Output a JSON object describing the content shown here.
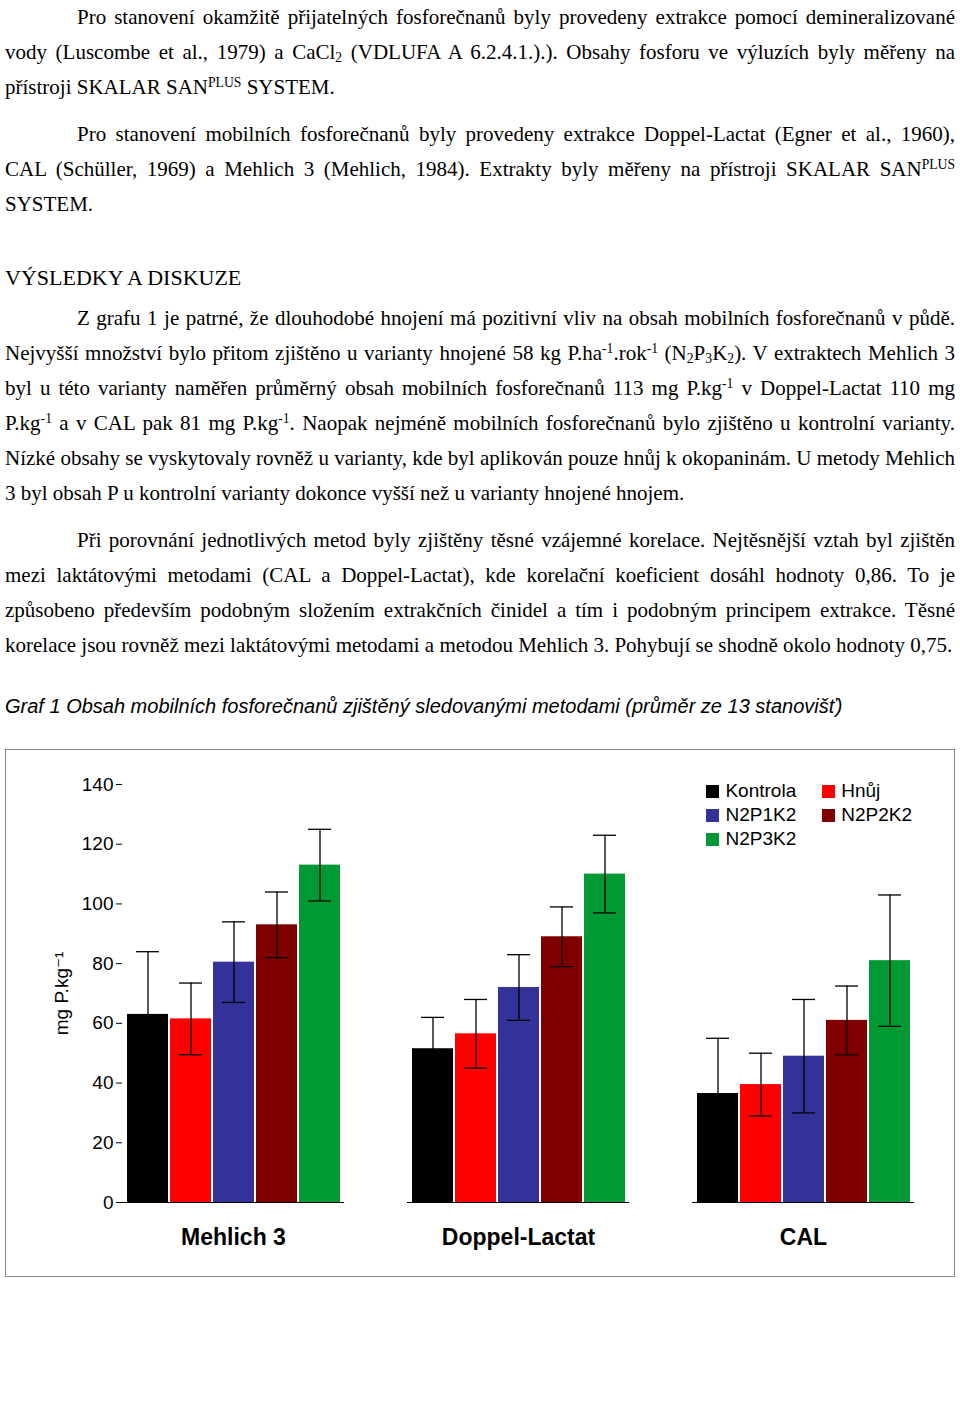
{
  "document": {
    "blocks": [
      {
        "kind": "paragraph",
        "runs": [
          "Pro stanovení okamžitě přijatelných fosforečnanů byly provedeny extrakce pomocí demineralizované vody (Luscombe et al., 1979) a CaCl",
          {
            "sub": "2"
          },
          " (VDLUFA A 6.2.4.1.).). Obsahy fosforu ve výluzích byly měřeny na přístroji SKALAR SAN",
          {
            "sup": "PLUS"
          },
          " SYSTEM."
        ]
      },
      {
        "kind": "paragraph",
        "runs": [
          "Pro stanovení mobilních fosforečnanů byly provedeny extrakce Doppel-Lactat (Egner et al., 1960), CAL (Schüller, 1969) a Mehlich 3 (Mehlich, 1984). Extrakty byly měřeny na přístroji SKALAR SAN",
          {
            "sup": "PLUS"
          },
          " SYSTEM."
        ]
      },
      {
        "kind": "heading",
        "runs": [
          "VÝSLEDKY A DISKUZE"
        ]
      },
      {
        "kind": "paragraph",
        "runs": [
          "Z grafu 1 je patrné, že dlouhodobé hnojení má pozitivní vliv na obsah mobilních fosforečnanů v půdě. Nejvyšší množství bylo přitom zjištěno u varianty hnojené 58 kg P.ha",
          {
            "sup": "-1"
          },
          ".rok",
          {
            "sup": "-1"
          },
          " (N",
          {
            "sub": "2"
          },
          "P",
          {
            "sub": "3"
          },
          "K",
          {
            "sub": "2"
          },
          "). V extraktech Mehlich 3 byl u této varianty naměřen průměrný obsah mobilních fosforečnanů 113 mg P.kg",
          {
            "sup": "-1"
          },
          " v Doppel-Lactat 110 mg P.kg",
          {
            "sup": "-1"
          },
          " a v CAL pak 81 mg P.kg",
          {
            "sup": "-1"
          },
          ". Naopak nejméně mobilních fosforečnanů bylo zjištěno u kontrolní varianty. Nízké obsahy se vyskytovaly rovněž u varianty, kde byl aplikován pouze hnůj k okopaninám. U metody Mehlich 3 byl obsah P u kontrolní varianty dokonce vyšší než u varianty hnojené hnojem."
        ]
      },
      {
        "kind": "paragraph",
        "runs": [
          "Při porovnání jednotlivých metod byly zjištěny těsné vzájemné korelace. Nejtěsnější vztah byl zjištěn mezi laktátovými metodami (CAL a Doppel-Lactat), kde korelační koeficient dosáhl hodnoty 0,86. To je způsobeno především podobným složením extrakčních činidel a tím i podobným principem extrakce. Těsné korelace jsou rovněž mezi laktátovými metodami a metodou Mehlich 3. Pohybují se shodně okolo hodnoty 0,75."
        ]
      }
    ]
  },
  "chart_data": {
    "type": "bar",
    "title": "Graf 1 Obsah mobilních fosforečnanů zjištěný sledovanými metodami (průměr ze 13 stanovišť)",
    "y_label": "mg P.kg⁻¹",
    "categories": [
      "Mehlich 3",
      "Doppel-Lactat",
      "CAL"
    ],
    "series": [
      {
        "name": "Kontrola",
        "color": "#000000",
        "values": [
          63,
          51.5,
          36.5
        ],
        "errors": [
          21,
          10.5,
          18.5
        ]
      },
      {
        "name": "Hnůj",
        "color": "#ff0000",
        "values": [
          61.5,
          56.5,
          39.5
        ],
        "errors": [
          12,
          11.5,
          10.5
        ]
      },
      {
        "name": "N2P1K2",
        "color": "#333399",
        "values": [
          80.5,
          72,
          49
        ],
        "errors": [
          13.5,
          11,
          19
        ]
      },
      {
        "name": "N2P2K2",
        "color": "#800000",
        "values": [
          93,
          89,
          61
        ],
        "errors": [
          11,
          10,
          11.5
        ]
      },
      {
        "name": "N2P3K2",
        "color": "#009933",
        "values": [
          113,
          110,
          81
        ],
        "errors": [
          12,
          13,
          22
        ]
      }
    ],
    "ylim": [
      0,
      140
    ],
    "yticks": [
      0,
      20,
      40,
      60,
      80,
      100,
      120,
      140
    ],
    "grid": false,
    "legend": "top-right"
  }
}
